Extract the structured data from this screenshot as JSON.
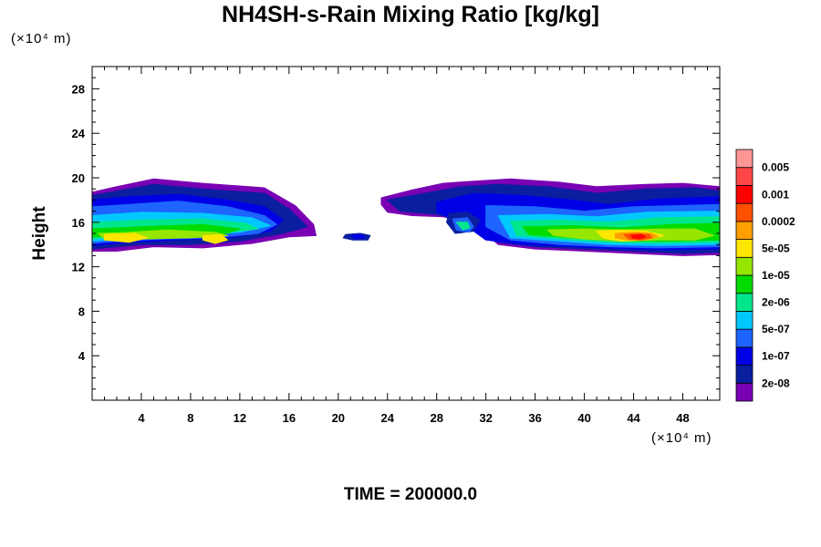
{
  "chart_data": {
    "type": "heatmap",
    "title": "NH4SH-s-Rain Mixing Ratio [kg/kg]",
    "xlabel": "",
    "ylabel": "Height",
    "x_unit": "(×10⁴ m)",
    "y_unit": "(×10⁴ m)",
    "xlim": [
      0,
      51
    ],
    "ylim": [
      0,
      30
    ],
    "x_ticks": [
      4,
      8,
      12,
      16,
      20,
      24,
      28,
      32,
      36,
      40,
      44,
      48
    ],
    "y_ticks": [
      4,
      8,
      12,
      16,
      20,
      24,
      28
    ],
    "time_label": "TIME = 200000.0",
    "colorbar": {
      "levels": [
        "2e-08",
        "1e-07",
        "5e-07",
        "2e-06",
        "1e-05",
        "5e-05",
        "0.0002",
        "0.001",
        "0.005"
      ],
      "colors": [
        "#7a00b4",
        "#0a1ea0",
        "#0000e6",
        "#1e64ff",
        "#00c8ff",
        "#00e68c",
        "#00dc00",
        "#96e600",
        "#ffe600",
        "#ffa000",
        "#ff5000",
        "#ff0000",
        "#ff4646",
        "#ff9696"
      ]
    },
    "field_blobs": [
      {
        "name": "left-cloud",
        "layers": [
          {
            "level": 0,
            "x": [
              0.0,
              2.0,
              5.0,
              9.0,
              14.0,
              16.5,
              18.0,
              18.2,
              16.0,
              13.0,
              9.0,
              5.0,
              2.0,
              0.0
            ],
            "y": [
              18.7,
              19.2,
              19.9,
              19.5,
              19.1,
              17.5,
              15.8,
              14.8,
              14.7,
              14.1,
              13.7,
              13.8,
              13.4,
              13.4
            ]
          },
          {
            "level": 1,
            "x": [
              0.0,
              2.0,
              5.0,
              9.0,
              14.0,
              16.0,
              17.5,
              15.5,
              12.0,
              8.0,
              4.0,
              0.0
            ],
            "y": [
              18.4,
              18.8,
              19.4,
              19.0,
              18.6,
              17.2,
              15.6,
              15.0,
              14.3,
              14.0,
              14.0,
              13.6
            ]
          },
          {
            "level": 2,
            "x": [
              0.0,
              3.0,
              7.0,
              11.0,
              14.0,
              15.5,
              14.5,
              11.0,
              7.0,
              3.0,
              0.0
            ],
            "y": [
              18.0,
              18.3,
              18.5,
              18.0,
              17.4,
              16.2,
              15.2,
              14.6,
              14.4,
              14.2,
              13.9
            ]
          },
          {
            "level": 3,
            "x": [
              0.0,
              3.0,
              7.0,
              11.0,
              14.0,
              15.0,
              13.5,
              10.0,
              6.0,
              2.0,
              0.0
            ],
            "y": [
              17.4,
              17.6,
              17.9,
              17.4,
              16.6,
              15.8,
              15.0,
              14.6,
              14.5,
              14.3,
              14.1
            ]
          },
          {
            "level": 4,
            "x": [
              0.0,
              4.0,
              9.0,
              13.0,
              14.5,
              12.0,
              8.0,
              3.0,
              0.0
            ],
            "y": [
              16.6,
              16.9,
              16.8,
              16.4,
              15.7,
              15.1,
              14.8,
              14.5,
              14.3
            ]
          },
          {
            "level": 5,
            "x": [
              0.0,
              4.0,
              9.0,
              12.5,
              13.5,
              11.0,
              6.0,
              2.0,
              0.0
            ],
            "y": [
              16.0,
              16.2,
              16.3,
              15.9,
              15.4,
              15.1,
              14.9,
              14.7,
              14.5
            ]
          },
          {
            "level": 6,
            "x": [
              0.0,
              4.0,
              9.0,
              12.0,
              11.0,
              7.0,
              3.0,
              0.0
            ],
            "y": [
              15.4,
              15.6,
              15.8,
              15.4,
              15.0,
              14.9,
              14.8,
              14.7
            ]
          },
          {
            "level": 7,
            "x": [
              0.5,
              3.0,
              6.0,
              10.0,
              11.0,
              8.0,
              4.0,
              1.0
            ],
            "y": [
              15.0,
              15.1,
              15.3,
              15.1,
              14.8,
              14.6,
              14.5,
              14.5
            ]
          },
          {
            "level": 8,
            "x": [
              1.0,
              3.5,
              4.5,
              3.0,
              1.0
            ],
            "y": [
              14.9,
              15.0,
              14.6,
              14.2,
              14.4
            ]
          },
          {
            "level": 8,
            "x": [
              9.0,
              10.5,
              11.0,
              10.0,
              9.0
            ],
            "y": [
              14.8,
              14.9,
              14.4,
              14.1,
              14.4
            ]
          }
        ]
      },
      {
        "name": "small-fragment",
        "layers": [
          {
            "level": 1,
            "x": [
              20.6,
              21.8,
              22.6,
              22.4,
              21.2,
              20.4
            ],
            "y": [
              14.9,
              15.0,
              14.8,
              14.4,
              14.4,
              14.6
            ]
          },
          {
            "level": 2,
            "x": [
              21.0,
              21.8,
              22.2,
              21.4
            ],
            "y": [
              14.8,
              14.9,
              14.6,
              14.5
            ]
          }
        ]
      },
      {
        "name": "right-cloud",
        "layers": [
          {
            "level": 0,
            "x": [
              23.5,
              26.0,
              28.5,
              31.0,
              34.0,
              38.0,
              41.0,
              45.0,
              48.0,
              51.0,
              51.0,
              48.0,
              44.0,
              40.0,
              36.0,
              33.0,
              31.0,
              28.5,
              26.0,
              24.0,
              23.5
            ],
            "y": [
              18.2,
              18.9,
              19.5,
              19.7,
              19.9,
              19.6,
              19.2,
              19.4,
              19.5,
              19.2,
              13.1,
              13.0,
              13.2,
              13.4,
              13.6,
              14.0,
              15.8,
              16.5,
              16.6,
              16.9,
              17.6
            ]
          },
          {
            "level": 1,
            "x": [
              24.0,
              27.0,
              30.0,
              33.0,
              37.0,
              41.0,
              45.0,
              49.0,
              51.0,
              51.0,
              48.0,
              44.0,
              40.0,
              36.0,
              33.0,
              31.0,
              28.0,
              25.0
            ],
            "y": [
              18.0,
              18.6,
              19.2,
              19.4,
              19.2,
              18.6,
              19.0,
              19.1,
              18.8,
              13.3,
              13.2,
              13.4,
              13.6,
              13.8,
              14.2,
              15.9,
              16.7,
              17.0
            ]
          },
          {
            "level": 2,
            "x": [
              28.0,
              31.0,
              35.0,
              39.0,
              42.0,
              46.0,
              51.0,
              51.0,
              47.0,
              43.0,
              39.0,
              35.0,
              32.0,
              30.0,
              28.0
            ],
            "y": [
              17.8,
              18.6,
              18.4,
              18.0,
              17.6,
              18.1,
              18.3,
              13.6,
              13.5,
              13.6,
              13.8,
              14.0,
              14.4,
              16.0,
              16.9
            ]
          },
          {
            "level": 3,
            "x": [
              32.0,
              36.0,
              40.0,
              44.0,
              51.0,
              51.0,
              46.0,
              42.0,
              38.0,
              34.0,
              32.0
            ],
            "y": [
              17.5,
              17.4,
              17.0,
              17.4,
              17.6,
              13.8,
              13.7,
              13.8,
              14.0,
              14.4,
              15.6
            ]
          },
          {
            "level": 4,
            "x": [
              33.0,
              37.0,
              41.0,
              45.0,
              51.0,
              51.0,
              46.0,
              42.0,
              38.0,
              34.0
            ],
            "y": [
              16.6,
              16.7,
              16.5,
              16.9,
              17.0,
              14.0,
              13.9,
              14.0,
              14.3,
              14.6
            ]
          },
          {
            "level": 5,
            "x": [
              34.0,
              38.0,
              42.0,
              46.0,
              51.0,
              51.0,
              46.0,
              42.0,
              38.0,
              34.5
            ],
            "y": [
              16.1,
              16.2,
              16.0,
              16.4,
              16.5,
              14.2,
              14.1,
              14.2,
              14.5,
              14.8
            ]
          },
          {
            "level": 6,
            "x": [
              35.0,
              39.0,
              43.0,
              47.0,
              51.0,
              51.0,
              47.0,
              43.0,
              39.0,
              35.5
            ],
            "y": [
              15.6,
              15.7,
              15.5,
              15.8,
              15.9,
              14.4,
              14.3,
              14.3,
              14.6,
              14.9
            ]
          },
          {
            "level": 7,
            "x": [
              37.0,
              40.0,
              43.0,
              46.0,
              49.0,
              50.5,
              49.0,
              46.0,
              43.0,
              40.0,
              37.5
            ],
            "y": [
              15.3,
              15.4,
              15.3,
              15.4,
              15.4,
              14.8,
              14.4,
              14.4,
              14.3,
              14.5,
              14.8
            ]
          },
          {
            "level": 8,
            "x": [
              41.0,
              43.0,
              45.0,
              46.5,
              45.0,
              43.0,
              41.5
            ],
            "y": [
              15.2,
              15.3,
              15.2,
              14.8,
              14.4,
              14.3,
              14.6
            ]
          },
          {
            "level": 9,
            "x": [
              42.5,
              44.0,
              45.5,
              46.0,
              45.0,
              43.5,
              42.5
            ],
            "y": [
              15.0,
              15.1,
              15.0,
              14.7,
              14.4,
              14.4,
              14.6
            ]
          },
          {
            "level": 10,
            "x": [
              43.2,
              44.3,
              45.3,
              45.5,
              44.6,
              43.6
            ],
            "y": [
              14.9,
              15.0,
              14.9,
              14.6,
              14.4,
              14.5
            ]
          },
          {
            "level": 11,
            "x": [
              43.8,
              44.6,
              45.0,
              44.5,
              43.9
            ],
            "y": [
              14.8,
              14.9,
              14.7,
              14.5,
              14.6
            ]
          },
          {
            "level": 1,
            "x": [
              29.0,
              30.5,
              31.5,
              31.0,
              29.5,
              28.8
            ],
            "y": [
              16.8,
              16.9,
              16.2,
              15.2,
              15.0,
              16.0
            ]
          },
          {
            "level": 3,
            "x": [
              29.3,
              30.5,
              31.0,
              30.6,
              29.6
            ],
            "y": [
              16.3,
              16.4,
              15.6,
              15.1,
              15.3
            ]
          },
          {
            "level": 5,
            "x": [
              29.6,
              30.5,
              30.7,
              30.1
            ],
            "y": [
              16.0,
              16.0,
              15.5,
              15.3
            ]
          }
        ]
      }
    ]
  }
}
